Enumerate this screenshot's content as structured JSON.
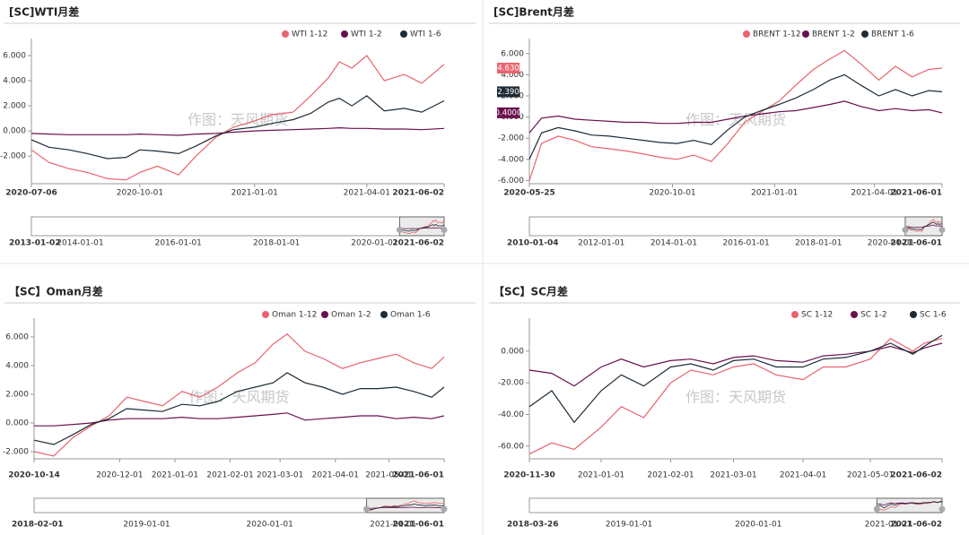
{
  "chart_data": [
    {
      "type": "line",
      "title": "[SC]WTI月差",
      "watermark": "作图：天风期货",
      "x": [
        "2020-07-06",
        "2020-07-20",
        "2020-08-05",
        "2020-08-20",
        "2020-09-05",
        "2020-09-20",
        "2020-10-01",
        "2020-10-15",
        "2020-11-01",
        "2020-11-15",
        "2020-12-01",
        "2020-12-15",
        "2021-01-01",
        "2021-01-15",
        "2021-02-01",
        "2021-02-15",
        "2021-03-01",
        "2021-03-10",
        "2021-03-20",
        "2021-04-01",
        "2021-04-15",
        "2021-05-01",
        "2021-05-15",
        "2021-06-02"
      ],
      "xlim": [
        "2020-07-06",
        "2021-06-02"
      ],
      "xticks": [
        "2020-07-06",
        "2020-10-01",
        "2021-01-01",
        "2021-04-01",
        "2021-06-02"
      ],
      "ylim": [
        -4.2,
        7
      ],
      "yticks": [
        {
          "value": -2,
          "label": "-2.000"
        },
        {
          "value": 0,
          "label": "0.000"
        },
        {
          "value": 2,
          "label": "2.000"
        },
        {
          "value": 4,
          "label": "4.000"
        },
        {
          "value": 6,
          "label": "6.000"
        }
      ],
      "series": [
        {
          "name": "WTI 1-12",
          "color": "#e8636e",
          "values": [
            -1.5,
            -2.5,
            -3.0,
            -3.3,
            -3.8,
            -3.9,
            -3.3,
            -2.8,
            -3.5,
            -2.0,
            -0.5,
            0.3,
            0.8,
            1.3,
            1.5,
            2.8,
            4.2,
            5.5,
            5.0,
            6.0,
            4.0,
            4.5,
            3.8,
            5.3
          ]
        },
        {
          "name": "WTI 1-2",
          "color": "#6b0f4f",
          "values": [
            -0.2,
            -0.25,
            -0.3,
            -0.3,
            -0.3,
            -0.3,
            -0.25,
            -0.3,
            -0.35,
            -0.25,
            -0.2,
            -0.1,
            0.0,
            0.05,
            0.1,
            0.15,
            0.2,
            0.25,
            0.2,
            0.2,
            0.15,
            0.15,
            0.1,
            0.2
          ]
        },
        {
          "name": "WTI 1-6",
          "color": "#1c2b36",
          "values": [
            -0.7,
            -1.3,
            -1.5,
            -1.8,
            -2.2,
            -2.1,
            -1.5,
            -1.6,
            -1.8,
            -1.2,
            -0.4,
            0.1,
            0.3,
            0.6,
            0.9,
            1.4,
            2.3,
            2.6,
            2.0,
            2.8,
            1.6,
            1.8,
            1.5,
            2.4
          ]
        }
      ],
      "navigator": {
        "xlim": [
          "2013-01-02",
          "2021-06-02"
        ],
        "ticks": [
          "2013-01-02",
          "2014-01-01",
          "2016-01-01",
          "2018-01-01",
          "2020-01-01",
          "2021-06-02"
        ]
      }
    },
    {
      "type": "line",
      "title": "[SC]Brent月差",
      "watermark": "作图：天风期货",
      "x": [
        "2020-05-25",
        "2020-06-05",
        "2020-06-20",
        "2020-07-05",
        "2020-07-20",
        "2020-08-05",
        "2020-08-20",
        "2020-09-05",
        "2020-09-20",
        "2020-10-05",
        "2020-10-20",
        "2020-11-05",
        "2020-11-20",
        "2020-12-05",
        "2020-12-20",
        "2021-01-05",
        "2021-01-20",
        "2021-02-05",
        "2021-02-20",
        "2021-03-05",
        "2021-03-20",
        "2021-04-05",
        "2021-04-20",
        "2021-05-05",
        "2021-05-20",
        "2021-06-01"
      ],
      "xlim": [
        "2020-05-25",
        "2021-06-01"
      ],
      "xticks": [
        "2020-05-25",
        "2020-10-01",
        "2021-01-01",
        "2021-04-01",
        "2021-06-01"
      ],
      "ylim": [
        -6.3,
        7
      ],
      "yticks": [
        {
          "value": -6,
          "label": "-6.000"
        },
        {
          "value": -4,
          "label": "-4.000"
        },
        {
          "value": -2,
          "label": "-2.000"
        },
        {
          "value": 0,
          "label": "0.000"
        },
        {
          "value": 2,
          "label": "2.000"
        },
        {
          "value": 4,
          "label": "4.000"
        },
        {
          "value": 6,
          "label": "6.000"
        }
      ],
      "series": [
        {
          "name": "BRENT 1-12",
          "color": "#e8636e",
          "end_label": "4.630",
          "values": [
            -6.0,
            -2.5,
            -1.8,
            -2.2,
            -2.8,
            -3.0,
            -3.2,
            -3.5,
            -3.8,
            -4.0,
            -3.6,
            -4.2,
            -2.5,
            -0.5,
            0.5,
            1.5,
            3.0,
            4.5,
            5.5,
            6.3,
            5.0,
            3.5,
            4.8,
            3.8,
            4.5,
            4.63
          ]
        },
        {
          "name": "BRENT 1-2",
          "color": "#6b0f4f",
          "end_label": "0.4000",
          "values": [
            -1.5,
            -0.1,
            0.1,
            -0.2,
            -0.3,
            -0.4,
            -0.5,
            -0.5,
            -0.6,
            -0.6,
            -0.5,
            -0.5,
            -0.2,
            0.1,
            0.3,
            0.5,
            0.6,
            0.9,
            1.2,
            1.5,
            1.0,
            0.6,
            0.8,
            0.6,
            0.7,
            0.4
          ]
        },
        {
          "name": "BRENT 1-6",
          "color": "#1c2b36",
          "end_label": "2.390",
          "values": [
            -4.0,
            -1.5,
            -1.0,
            -1.3,
            -1.7,
            -1.8,
            -2.0,
            -2.2,
            -2.4,
            -2.5,
            -2.2,
            -2.6,
            -1.2,
            0.0,
            0.6,
            1.2,
            1.8,
            2.6,
            3.5,
            4.0,
            3.0,
            2.0,
            2.6,
            2.0,
            2.5,
            2.39
          ]
        }
      ],
      "navigator": {
        "xlim": [
          "2010-01-04",
          "2021-06-01"
        ],
        "ticks": [
          "2010-01-04",
          "2012-01-01",
          "2014-01-01",
          "2016-01-01",
          "2018-01-01",
          "2020-01-01",
          "2021-06-01"
        ]
      }
    },
    {
      "type": "line",
      "title": "【SC】Oman月差",
      "watermark": "作图：天风期货",
      "x": [
        "2020-10-14",
        "2020-10-25",
        "2020-11-05",
        "2020-11-15",
        "2020-11-25",
        "2020-12-05",
        "2020-12-15",
        "2020-12-25",
        "2021-01-05",
        "2021-01-15",
        "2021-01-25",
        "2021-02-05",
        "2021-02-15",
        "2021-02-25",
        "2021-03-05",
        "2021-03-15",
        "2021-03-25",
        "2021-04-05",
        "2021-04-15",
        "2021-04-25",
        "2021-05-05",
        "2021-05-15",
        "2021-05-25",
        "2021-06-01"
      ],
      "xlim": [
        "2020-10-14",
        "2021-06-01"
      ],
      "xticks": [
        "2020-10-14",
        "2020-12-01",
        "2021-01-01",
        "2021-02-01",
        "2021-03-01",
        "2021-04-01",
        "2021-05-01",
        "2021-06-01"
      ],
      "ylim": [
        -2.5,
        7
      ],
      "yticks": [
        {
          "value": -2,
          "label": "-2.000"
        },
        {
          "value": 0,
          "label": "0.000"
        },
        {
          "value": 2,
          "label": "2.000"
        },
        {
          "value": 4,
          "label": "4.000"
        },
        {
          "value": 6,
          "label": "6.000"
        }
      ],
      "series": [
        {
          "name": "Oman 1-12",
          "color": "#e8636e",
          "values": [
            -2.0,
            -2.3,
            -1.0,
            -0.2,
            0.5,
            1.8,
            1.5,
            1.2,
            2.2,
            1.8,
            2.5,
            3.5,
            4.2,
            5.5,
            6.2,
            5.0,
            4.5,
            3.8,
            4.2,
            4.5,
            4.8,
            4.2,
            3.8,
            4.6
          ]
        },
        {
          "name": "Oman 1-2",
          "color": "#6b0f4f",
          "values": [
            -0.2,
            -0.2,
            -0.1,
            0.0,
            0.2,
            0.3,
            0.3,
            0.3,
            0.4,
            0.3,
            0.3,
            0.4,
            0.5,
            0.6,
            0.7,
            0.2,
            0.3,
            0.4,
            0.5,
            0.5,
            0.3,
            0.4,
            0.3,
            0.5
          ]
        },
        {
          "name": "Oman 1-6",
          "color": "#1c2b36",
          "values": [
            -1.2,
            -1.5,
            -0.8,
            -0.1,
            0.3,
            1.0,
            0.9,
            0.8,
            1.3,
            1.2,
            1.5,
            2.2,
            2.5,
            2.8,
            3.5,
            2.8,
            2.5,
            2.0,
            2.4,
            2.4,
            2.5,
            2.2,
            1.8,
            2.5
          ]
        }
      ],
      "navigator": {
        "xlim": [
          "2018-02-01",
          "2021-06-01"
        ],
        "ticks": [
          "2018-02-01",
          "2019-01-01",
          "2020-01-01",
          "2021-01-01",
          "2021-06-01"
        ]
      }
    },
    {
      "type": "line",
      "title": "【SC】SC月差",
      "watermark": "作图：天风期货",
      "x": [
        "2020-11-30",
        "2020-12-10",
        "2020-12-20",
        "2021-01-01",
        "2021-01-10",
        "2021-01-20",
        "2021-02-01",
        "2021-02-10",
        "2021-02-20",
        "2021-03-01",
        "2021-03-10",
        "2021-03-20",
        "2021-04-01",
        "2021-04-10",
        "2021-04-20",
        "2021-05-01",
        "2021-05-10",
        "2021-05-20",
        "2021-05-25",
        "2021-06-02"
      ],
      "xlim": [
        "2020-11-30",
        "2021-06-02"
      ],
      "xticks": [
        "2020-11-30",
        "2021-01-01",
        "2021-02-01",
        "2021-03-01",
        "2021-04-01",
        "2021-05-01",
        "2021-06-02"
      ],
      "ylim": [
        -68,
        18
      ],
      "yticks": [
        {
          "value": -60,
          "label": "-60.00"
        },
        {
          "value": -40,
          "label": "-40.00"
        },
        {
          "value": -20,
          "label": "-20.00"
        },
        {
          "value": 0,
          "label": "0.000"
        }
      ],
      "series": [
        {
          "name": "SC 1-12",
          "color": "#e8636e",
          "values": [
            -65,
            -58,
            -62,
            -48,
            -35,
            -42,
            -20,
            -12,
            -15,
            -10,
            -8,
            -15,
            -18,
            -10,
            -10,
            -5,
            8,
            0,
            5,
            8
          ]
        },
        {
          "name": "SC 1-2",
          "color": "#6b0f4f",
          "values": [
            -12,
            -14,
            -22,
            -10,
            -5,
            -10,
            -6,
            -5,
            -8,
            -4,
            -3,
            -6,
            -7,
            -3,
            -2,
            0,
            3,
            -1,
            2,
            5
          ]
        },
        {
          "name": "SC 1-6",
          "color": "#1c2b36",
          "values": [
            -35,
            -25,
            -45,
            -25,
            -15,
            -22,
            -10,
            -8,
            -12,
            -6,
            -5,
            -10,
            -10,
            -5,
            -4,
            0,
            5,
            -2,
            3,
            10
          ]
        }
      ],
      "navigator": {
        "xlim": [
          "2018-03-26",
          "2021-06-02"
        ],
        "ticks": [
          "2018-03-26",
          "2019-01-01",
          "2020-01-01",
          "2021-01-01",
          "2021-06-02"
        ]
      }
    }
  ]
}
